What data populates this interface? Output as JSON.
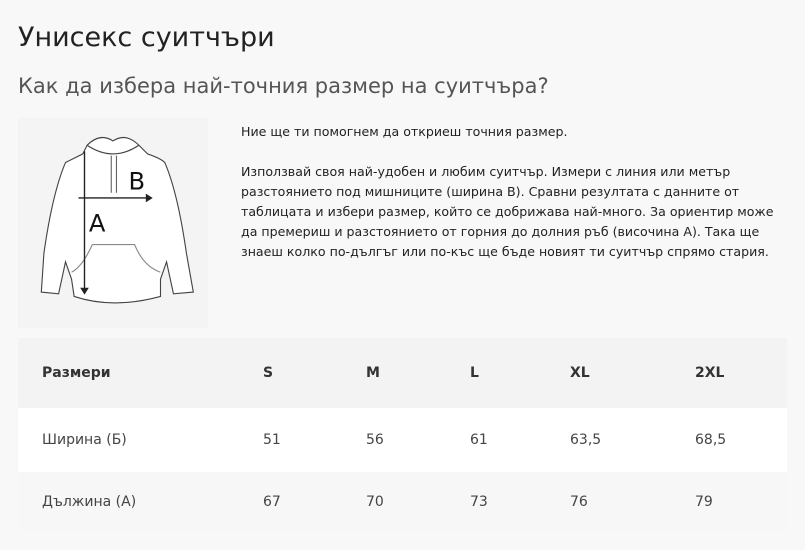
{
  "title": "Унисекс суитчъри",
  "subtitle": "Как да избера най-точния размер на суитчъра?",
  "diagram": {
    "label_a": "A",
    "label_b": "B"
  },
  "intro": "Ние ще ти помогнем да откриеш точния размер.",
  "description": "Използвай своя най-удобен и любим суитчър. Измери с линия или метър разстоянието под мишниците (ширина В). Сравни резултата с данните от таблицата и избери размер, който се добрижава най-много. За ориентир може да премериш и разстоянието от горния до долния ръб (височина А). Така ще знаеш колко по-дългъг или по-къс ще бъде новият ти суитчър спрямо стария.",
  "table": {
    "header": [
      "Размери",
      "S",
      "M",
      "L",
      "XL",
      "2XL"
    ],
    "rows": [
      [
        "Ширина (Б)",
        "51",
        "56",
        "61",
        "63,5",
        "68,5"
      ],
      [
        "Дължина (А)",
        "67",
        "70",
        "73",
        "76",
        "79"
      ]
    ]
  }
}
